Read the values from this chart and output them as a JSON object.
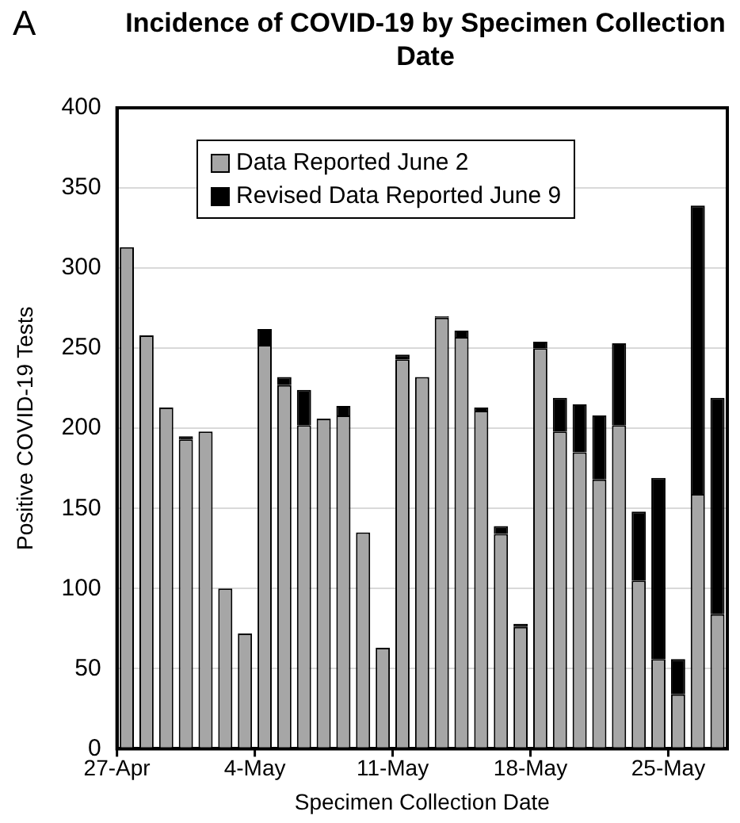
{
  "chart_data": {
    "type": "bar",
    "title": "Incidence of COVID-19 by Specimen Collection Date",
    "xlabel": "Specimen Collection Date",
    "ylabel": "Positive COVID-19 Tests",
    "annotations": [
      "A"
    ],
    "categories": [
      "27-Apr",
      null,
      null,
      null,
      null,
      null,
      null,
      "4-May",
      null,
      null,
      null,
      null,
      null,
      null,
      "11-May",
      null,
      null,
      null,
      null,
      null,
      null,
      "18-May",
      null,
      null,
      null,
      null,
      null,
      null,
      "25-May",
      null,
      null
    ],
    "stacked": true,
    "series": [
      {
        "name": "Data Reported June 2",
        "color": "#a6a6a6",
        "values": [
          313,
          258,
          213,
          193,
          198,
          100,
          72,
          252,
          227,
          202,
          206,
          208,
          135,
          63,
          243,
          232,
          269,
          257,
          211,
          134,
          76,
          250,
          198,
          185,
          168,
          202,
          105,
          56,
          34,
          159,
          84
        ]
      },
      {
        "name": "Revised Data Reported June 9",
        "color": "#000000",
        "values": [
          0,
          0,
          0,
          2,
          0,
          0,
          0,
          10,
          5,
          22,
          0,
          6,
          0,
          0,
          3,
          0,
          1,
          4,
          2,
          5,
          2,
          4,
          21,
          30,
          40,
          51,
          43,
          113,
          22,
          180,
          135
        ]
      }
    ],
    "ylim": [
      0,
      400
    ],
    "yticks": [
      0,
      50,
      100,
      150,
      200,
      250,
      300,
      350,
      400
    ],
    "grid": "y",
    "legend": "top"
  }
}
